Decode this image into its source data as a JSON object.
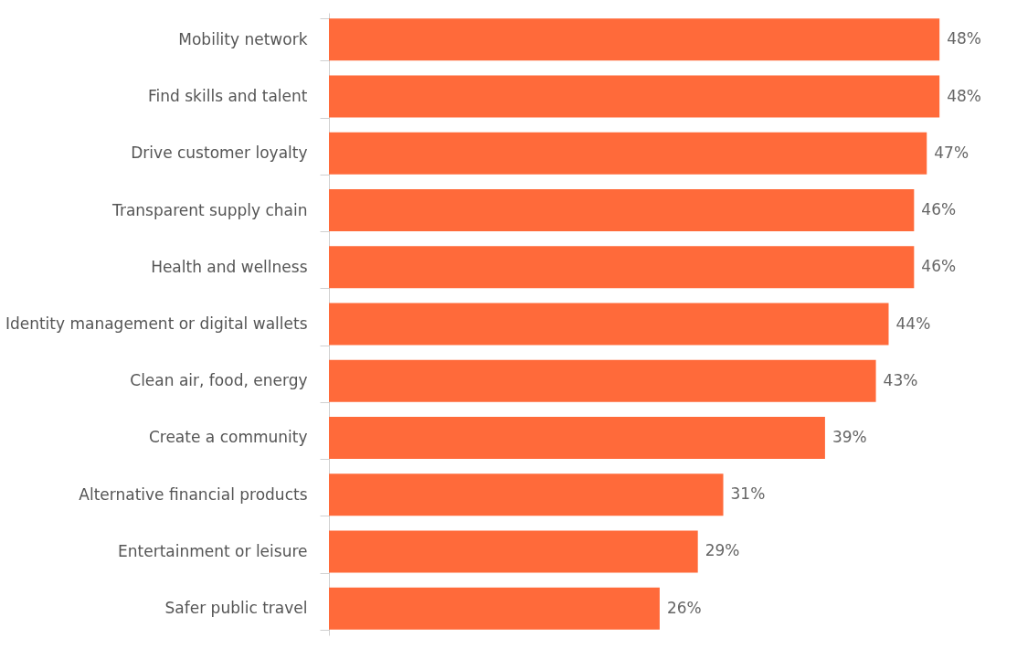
{
  "chart_data": {
    "type": "bar",
    "orientation": "horizontal",
    "categories": [
      "Mobility network",
      "Find skills and talent",
      "Drive customer loyalty",
      "Transparent supply chain",
      "Health and wellness",
      "Identity management or digital wallets",
      "Clean air, food, energy",
      "Create a community",
      "Alternative financial products",
      "Entertainment or leisure",
      "Safer public travel"
    ],
    "values": [
      48,
      48,
      47,
      46,
      46,
      44,
      43,
      39,
      31,
      29,
      26
    ],
    "value_labels": [
      "48%",
      "48%",
      "47%",
      "46%",
      "46%",
      "44%",
      "43%",
      "39%",
      "31%",
      "29%",
      "26%"
    ],
    "color": "#ff6a3a",
    "tick_labels": "y"
  }
}
